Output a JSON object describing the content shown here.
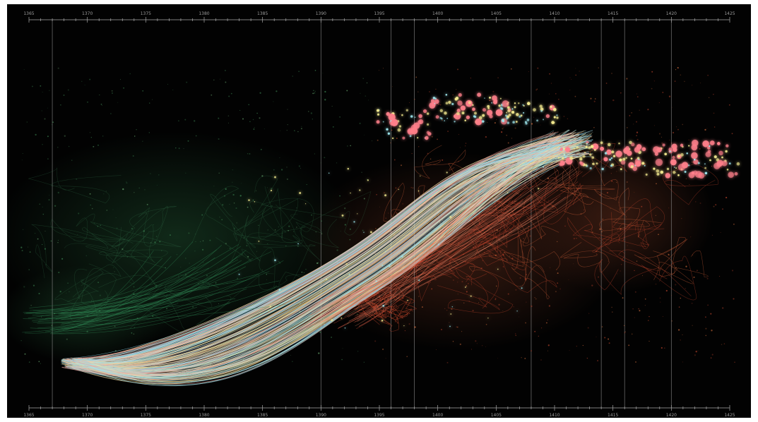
{
  "timeline": {
    "start": 1365,
    "end": 1425,
    "major_step": 5,
    "minor_step": 1,
    "tick_labels": [
      "1365",
      "1370",
      "1375",
      "1380",
      "1385",
      "1390",
      "1395",
      "1400",
      "1405",
      "1410",
      "1415",
      "1420",
      "1425"
    ]
  },
  "markers": [
    1367,
    1390,
    1396,
    1398,
    1408,
    1414,
    1416,
    1420
  ],
  "colors": {
    "background": "#020202",
    "axis": "#a8a8a8",
    "gridline": "#8a8a8a",
    "palette": [
      "#8fd3e8",
      "#f3d58a",
      "#f2a09a",
      "#e8553c",
      "#5fa870",
      "#7ec9a0"
    ],
    "node_pink": "#ff7f8a",
    "node_yellow": "#f4ea8f",
    "node_cyan": "#9ee7ee"
  }
}
